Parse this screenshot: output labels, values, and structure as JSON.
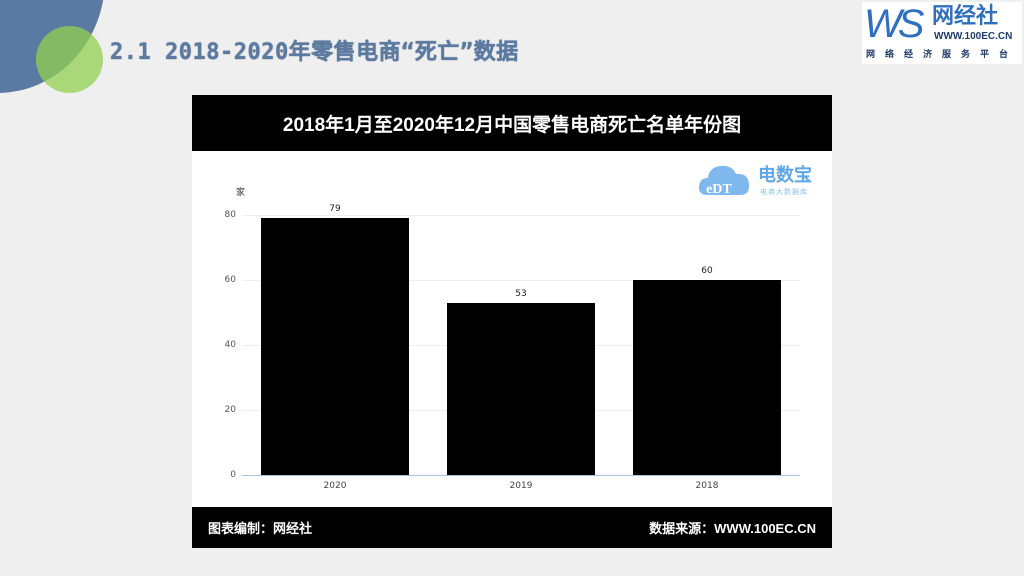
{
  "slide": {
    "title": "2.1 2018-2020年零售电商“死亡”数据"
  },
  "logo": {
    "ws": "WS",
    "name": "网经社",
    "url": "WWW.100EC.CN",
    "tagline": "网络经济服务平台"
  },
  "chart_card": {
    "header_title": "2018年1月至2020年12月中国零售电商死亡名单年份图",
    "footer_left": "图表编制：网经社",
    "footer_right": "数据来源：WWW.100EC.CN",
    "watermark": {
      "title": "电数宝",
      "subtitle": "电商大数据库",
      "cloud_text": "eDT"
    }
  },
  "colors": {
    "bar": "#000000",
    "header_bg": "#000000",
    "title_blue": "#5b7aa1",
    "deco_green": "#92d050",
    "logo_blue": "#2f6fc0"
  },
  "chart_data": {
    "type": "bar",
    "title": "2018年1月至2020年12月中国零售电商死亡名单年份图",
    "xlabel": "",
    "ylabel": "家",
    "categories": [
      "2020",
      "2019",
      "2018"
    ],
    "values": [
      79,
      53,
      60
    ],
    "ylim": [
      0,
      80
    ],
    "yticks": [
      0,
      20,
      40,
      60,
      80
    ],
    "grid": true,
    "legend": null,
    "data_labels": true
  }
}
